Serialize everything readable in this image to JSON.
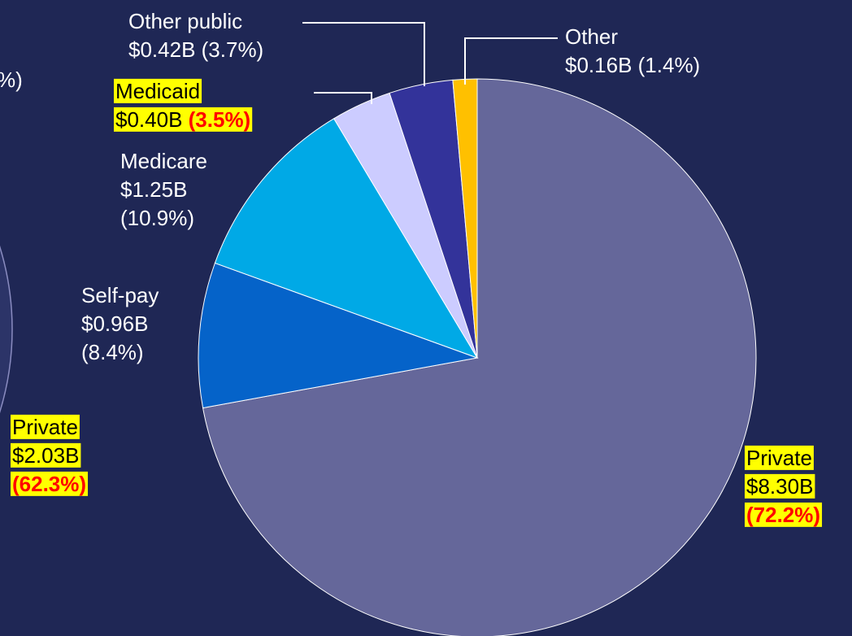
{
  "chart_data": {
    "type": "pie",
    "categories": [
      "Private",
      "Self-pay",
      "Medicare",
      "Medicaid",
      "Other public",
      "Other"
    ],
    "amount_labels": [
      "$8.30B",
      "$0.96B",
      "$1.25B",
      "$0.40B",
      "$0.42B",
      "$0.16B"
    ],
    "values": [
      72.2,
      8.4,
      10.9,
      3.5,
      3.7,
      1.4
    ],
    "value_labels": [
      "(72.2%)",
      "(8.4%)",
      "(10.9%)",
      "(3.5%)",
      "(3.7%)",
      "(1.4%)"
    ],
    "colors": [
      "#65679a",
      "#0563c9",
      "#00a9e6",
      "#ccccff",
      "#33339a",
      "#ffc000"
    ],
    "highlight": [
      true,
      false,
      false,
      true,
      false,
      false
    ],
    "annotations": [
      {
        "lines": [
          "Private",
          "$2.03B",
          "(62.3%)"
        ]
      },
      {
        "lines": [
          "%)"
        ]
      }
    ]
  }
}
